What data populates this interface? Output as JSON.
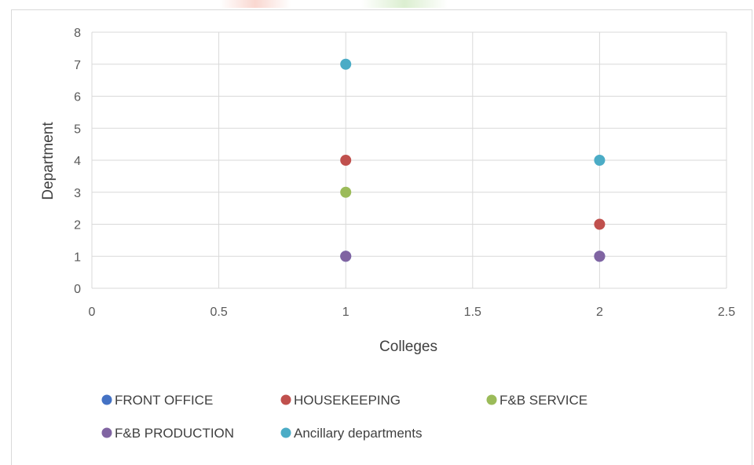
{
  "chart_data": {
    "type": "scatter",
    "title": "",
    "xlabel": "Colleges",
    "ylabel": "Department",
    "xlim": [
      0,
      2.5
    ],
    "ylim": [
      0,
      8
    ],
    "xticks": [
      "0",
      "0.5",
      "1",
      "1.5",
      "2",
      "2.5"
    ],
    "yticks": [
      "0",
      "1",
      "2",
      "3",
      "4",
      "5",
      "6",
      "7",
      "8"
    ],
    "grid": true,
    "legend_position": "bottom",
    "series": [
      {
        "name": "FRONT OFFICE",
        "color": "#4472c4",
        "points": [
          [
            1,
            1
          ],
          [
            2,
            1
          ]
        ]
      },
      {
        "name": "HOUSEKEEPING",
        "color": "#c0504d",
        "points": [
          [
            1,
            4
          ],
          [
            2,
            2
          ]
        ]
      },
      {
        "name": "F&B SERVICE",
        "color": "#9bbb59",
        "points": [
          [
            1,
            3
          ]
        ]
      },
      {
        "name": "F&B PRODUCTION",
        "color": "#8064a2",
        "points": [
          [
            1,
            1
          ],
          [
            2,
            1
          ]
        ]
      },
      {
        "name": "Ancillary departments",
        "color": "#4bacc6",
        "points": [
          [
            1,
            7
          ],
          [
            2,
            4
          ]
        ]
      }
    ]
  }
}
